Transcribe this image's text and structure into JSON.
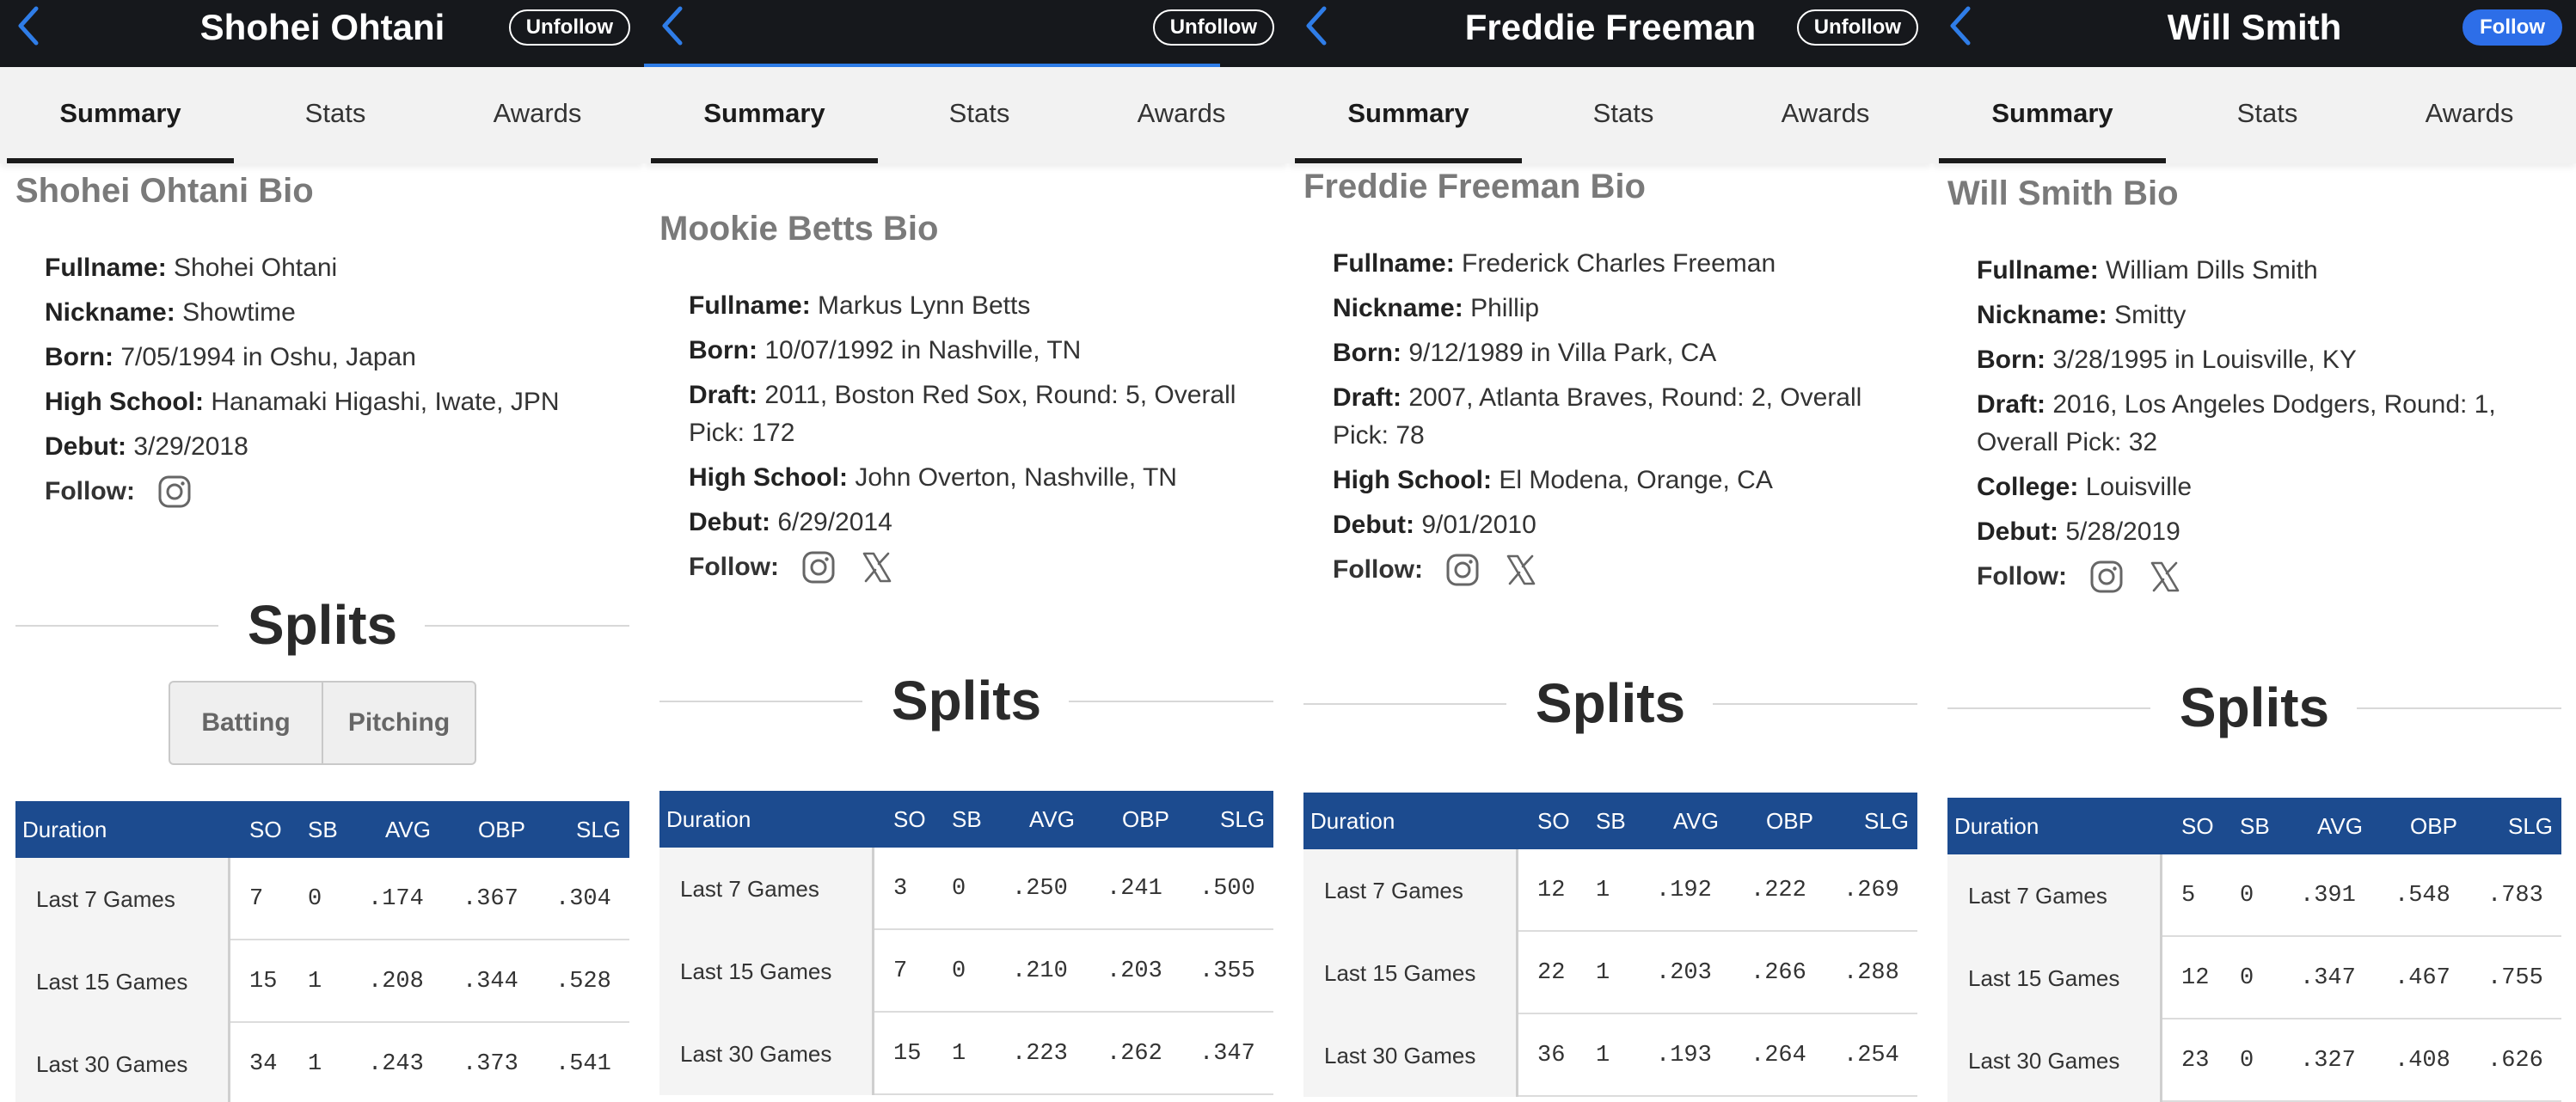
{
  "panels": [
    {
      "title": "Shohei Ohtani",
      "follow_button": "Unfollow",
      "follow_style": "unfollow",
      "tabs": [
        "Summary",
        "Stats",
        "Awards"
      ],
      "bio_title": "Shohei Ohtani Bio",
      "bio": [
        {
          "label": "Fullname:",
          "value": "Shohei Ohtani"
        },
        {
          "label": "Nickname:",
          "value": "Showtime"
        },
        {
          "label": "Born:",
          "value": "7/05/1994 in Oshu, Japan"
        },
        {
          "label": "High School:",
          "value": "Hanamaki Higashi, Iwate, JPN"
        },
        {
          "label": "Debut:",
          "value": "3/29/2018"
        }
      ],
      "follow_label": "Follow:",
      "social_icons": [
        "instagram-icon"
      ],
      "splits_title": "Splits",
      "split_toggle": [
        "Batting",
        "Pitching"
      ],
      "stat_headers": [
        "Duration",
        "SO",
        "SB",
        "AVG",
        "OBP",
        "SLG"
      ],
      "stat_rows": [
        {
          "duration": "Last 7 Games",
          "so": "7",
          "sb": "0",
          "avg": ".174",
          "obp": ".367",
          "slg": ".304"
        },
        {
          "duration": "Last 15 Games",
          "so": "15",
          "sb": "1",
          "avg": ".208",
          "obp": ".344",
          "slg": ".528"
        },
        {
          "duration": "Last 30 Games",
          "so": "34",
          "sb": "1",
          "avg": ".243",
          "obp": ".373",
          "slg": ".541"
        }
      ]
    },
    {
      "title": "",
      "follow_button": "Unfollow",
      "follow_style": "unfollow",
      "tabs": [
        "Summary",
        "Stats",
        "Awards"
      ],
      "bio_title": "Mookie Betts Bio",
      "bio": [
        {
          "label": "Fullname:",
          "value": "Markus Lynn Betts"
        },
        {
          "label": "Born:",
          "value": "10/07/1992 in Nashville, TN"
        },
        {
          "label": "Draft:",
          "value": "2011, Boston Red Sox, Round: 5, Overall Pick: 172"
        },
        {
          "label": "High School:",
          "value": "John Overton, Nashville, TN"
        },
        {
          "label": "Debut:",
          "value": "6/29/2014"
        }
      ],
      "follow_label": "Follow:",
      "social_icons": [
        "instagram-icon",
        "x-icon"
      ],
      "splits_title": "Splits",
      "stat_headers": [
        "Duration",
        "SO",
        "SB",
        "AVG",
        "OBP",
        "SLG"
      ],
      "stat_rows": [
        {
          "duration": "Last 7 Games",
          "so": "3",
          "sb": "0",
          "avg": ".250",
          "obp": ".241",
          "slg": ".500"
        },
        {
          "duration": "Last 15 Games",
          "so": "7",
          "sb": "0",
          "avg": ".210",
          "obp": ".203",
          "slg": ".355"
        },
        {
          "duration": "Last 30 Games",
          "so": "15",
          "sb": "1",
          "avg": ".223",
          "obp": ".262",
          "slg": ".347"
        }
      ]
    },
    {
      "title": "Freddie Freeman",
      "follow_button": "Unfollow",
      "follow_style": "unfollow",
      "tabs": [
        "Summary",
        "Stats",
        "Awards"
      ],
      "bio_title": "Freddie Freeman Bio",
      "bio": [
        {
          "label": "Fullname:",
          "value": "Frederick Charles Freeman"
        },
        {
          "label": "Nickname:",
          "value": "Phillip"
        },
        {
          "label": "Born:",
          "value": "9/12/1989 in Villa Park, CA"
        },
        {
          "label": "Draft:",
          "value": "2007, Atlanta Braves, Round: 2, Overall Pick: 78"
        },
        {
          "label": "High School:",
          "value": "El Modena, Orange, CA"
        },
        {
          "label": "Debut:",
          "value": "9/01/2010"
        }
      ],
      "follow_label": "Follow:",
      "social_icons": [
        "instagram-icon",
        "x-icon"
      ],
      "splits_title": "Splits",
      "stat_headers": [
        "Duration",
        "SO",
        "SB",
        "AVG",
        "OBP",
        "SLG"
      ],
      "stat_rows": [
        {
          "duration": "Last 7 Games",
          "so": "12",
          "sb": "1",
          "avg": ".192",
          "obp": ".222",
          "slg": ".269"
        },
        {
          "duration": "Last 15 Games",
          "so": "22",
          "sb": "1",
          "avg": ".203",
          "obp": ".266",
          "slg": ".288"
        },
        {
          "duration": "Last 30 Games",
          "so": "36",
          "sb": "1",
          "avg": ".193",
          "obp": ".264",
          "slg": ".254"
        }
      ]
    },
    {
      "title": "Will Smith",
      "follow_button": "Follow",
      "follow_style": "follow",
      "tabs": [
        "Summary",
        "Stats",
        "Awards"
      ],
      "bio_title": "Will Smith Bio",
      "bio": [
        {
          "label": "Fullname:",
          "value": "William Dills Smith"
        },
        {
          "label": "Nickname:",
          "value": "Smitty"
        },
        {
          "label": "Born:",
          "value": "3/28/1995 in Louisville, KY"
        },
        {
          "label": "Draft:",
          "value": "2016, Los Angeles Dodgers, Round: 1, Overall Pick: 32"
        },
        {
          "label": "College:",
          "value": "Louisville"
        },
        {
          "label": "Debut:",
          "value": "5/28/2019"
        }
      ],
      "follow_label": "Follow:",
      "social_icons": [
        "instagram-icon",
        "x-icon"
      ],
      "splits_title": "Splits",
      "stat_headers": [
        "Duration",
        "SO",
        "SB",
        "AVG",
        "OBP",
        "SLG"
      ],
      "stat_rows": [
        {
          "duration": "Last 7 Games",
          "so": "5",
          "sb": "0",
          "avg": ".391",
          "obp": ".548",
          "slg": ".783"
        },
        {
          "duration": "Last 15 Games",
          "so": "12",
          "sb": "0",
          "avg": ".347",
          "obp": ".467",
          "slg": ".755"
        },
        {
          "duration": "Last 30 Games",
          "so": "23",
          "sb": "0",
          "avg": ".327",
          "obp": ".408",
          "slg": ".626"
        }
      ]
    }
  ],
  "colors": {
    "topbar": "#16181c",
    "accent": "#2f7de8",
    "table_header": "#1c4b8f",
    "follow_button": "#2d6ee8"
  }
}
